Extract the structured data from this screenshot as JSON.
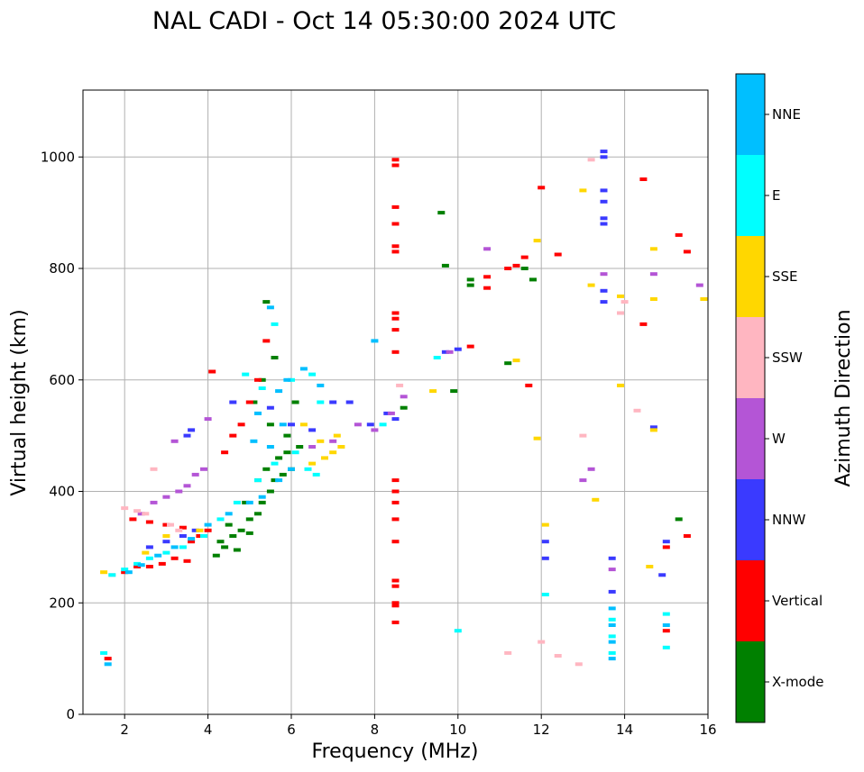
{
  "chart_data": {
    "type": "scatter",
    "title": "NAL CADI - Oct 14 05:30:00 2024 UTC",
    "xlabel": "Frequency (MHz)",
    "ylabel": "Virtual height (km)",
    "xlim": [
      1,
      16
    ],
    "ylim": [
      0,
      1120
    ],
    "xticks": [
      "2",
      "4",
      "6",
      "8",
      "10",
      "12",
      "14",
      "16"
    ],
    "yticks": [
      "0",
      "200",
      "400",
      "600",
      "800",
      "1000"
    ],
    "grid": true,
    "colorbar": {
      "label": "Azimuth Direction",
      "categories": [
        {
          "name": "X-mode",
          "color": "#008000"
        },
        {
          "name": "Vertical",
          "color": "#ff0000"
        },
        {
          "name": "NNW",
          "color": "#3a3aff"
        },
        {
          "name": "W",
          "color": "#b455d6"
        },
        {
          "name": "SSW",
          "color": "#ffb6c1"
        },
        {
          "name": "SSE",
          "color": "#ffd700"
        },
        {
          "name": "E",
          "color": "#00ffff"
        },
        {
          "name": "NNE",
          "color": "#00bfff"
        }
      ]
    },
    "series": [
      {
        "name": "X-mode",
        "points": [
          [
            4.2,
            285
          ],
          [
            4.4,
            300
          ],
          [
            4.6,
            320
          ],
          [
            4.8,
            330
          ],
          [
            5.0,
            350
          ],
          [
            5.2,
            360
          ],
          [
            5.3,
            380
          ],
          [
            5.5,
            400
          ],
          [
            5.6,
            420
          ],
          [
            5.8,
            430
          ],
          [
            6.0,
            440
          ],
          [
            5.2,
            420
          ],
          [
            4.9,
            380
          ],
          [
            4.5,
            340
          ],
          [
            5.7,
            460
          ],
          [
            5.4,
            440
          ],
          [
            6.2,
            480
          ],
          [
            5.9,
            500
          ],
          [
            5.5,
            520
          ],
          [
            6.1,
            560
          ],
          [
            5.1,
            560
          ],
          [
            5.3,
            600
          ],
          [
            5.6,
            640
          ],
          [
            5.4,
            740
          ],
          [
            9.6,
            900
          ],
          [
            9.7,
            805
          ],
          [
            10.3,
            780
          ],
          [
            10.3,
            770
          ],
          [
            11.2,
            630
          ],
          [
            11.6,
            800
          ],
          [
            11.8,
            780
          ],
          [
            15.3,
            350
          ],
          [
            4.3,
            310
          ],
          [
            4.7,
            295
          ],
          [
            5.0,
            325
          ],
          [
            5.9,
            470
          ],
          [
            8.7,
            550
          ],
          [
            9.9,
            580
          ]
        ]
      },
      {
        "name": "Vertical",
        "points": [
          [
            1.6,
            100
          ],
          [
            2.0,
            255
          ],
          [
            2.3,
            265
          ],
          [
            2.6,
            265
          ],
          [
            2.9,
            270
          ],
          [
            3.2,
            280
          ],
          [
            3.5,
            275
          ],
          [
            2.2,
            350
          ],
          [
            2.6,
            345
          ],
          [
            3.0,
            340
          ],
          [
            3.4,
            335
          ],
          [
            3.8,
            320
          ],
          [
            4.0,
            330
          ],
          [
            3.6,
            310
          ],
          [
            4.1,
            615
          ],
          [
            4.4,
            470
          ],
          [
            4.6,
            500
          ],
          [
            4.8,
            520
          ],
          [
            5.0,
            560
          ],
          [
            5.2,
            600
          ],
          [
            5.4,
            670
          ],
          [
            8.5,
            985
          ],
          [
            8.5,
            995
          ],
          [
            8.5,
            910
          ],
          [
            8.5,
            880
          ],
          [
            8.5,
            840
          ],
          [
            8.5,
            830
          ],
          [
            8.5,
            720
          ],
          [
            8.5,
            710
          ],
          [
            8.5,
            690
          ],
          [
            8.5,
            650
          ],
          [
            8.5,
            420
          ],
          [
            8.5,
            400
          ],
          [
            8.5,
            380
          ],
          [
            8.5,
            350
          ],
          [
            8.5,
            310
          ],
          [
            8.5,
            240
          ],
          [
            8.5,
            230
          ],
          [
            8.5,
            200
          ],
          [
            8.5,
            195
          ],
          [
            8.5,
            165
          ],
          [
            10.3,
            660
          ],
          [
            10.7,
            785
          ],
          [
            10.7,
            765
          ],
          [
            11.2,
            800
          ],
          [
            11.4,
            805
          ],
          [
            11.6,
            820
          ],
          [
            11.7,
            590
          ],
          [
            12.0,
            945
          ],
          [
            12.4,
            825
          ],
          [
            14.45,
            960
          ],
          [
            14.45,
            700
          ],
          [
            15.0,
            300
          ],
          [
            15.0,
            150
          ],
          [
            15.3,
            860
          ],
          [
            15.5,
            830
          ],
          [
            15.5,
            320
          ]
        ]
      },
      {
        "name": "NNW",
        "points": [
          [
            2.6,
            300
          ],
          [
            3.0,
            310
          ],
          [
            3.4,
            320
          ],
          [
            3.7,
            330
          ],
          [
            3.5,
            500
          ],
          [
            3.6,
            510
          ],
          [
            4.6,
            560
          ],
          [
            5.5,
            550
          ],
          [
            6.0,
            520
          ],
          [
            6.5,
            510
          ],
          [
            7.0,
            560
          ],
          [
            7.4,
            560
          ],
          [
            7.9,
            520
          ],
          [
            8.3,
            540
          ],
          [
            8.5,
            530
          ],
          [
            9.7,
            650
          ],
          [
            10.0,
            655
          ],
          [
            13.5,
            1010
          ],
          [
            13.5,
            1000
          ],
          [
            13.5,
            940
          ],
          [
            13.5,
            920
          ],
          [
            13.5,
            890
          ],
          [
            13.5,
            880
          ],
          [
            13.5,
            760
          ],
          [
            13.5,
            740
          ],
          [
            13.7,
            280
          ],
          [
            13.7,
            220
          ],
          [
            12.1,
            310
          ],
          [
            12.1,
            280
          ],
          [
            14.7,
            515
          ],
          [
            14.9,
            250
          ],
          [
            15.0,
            310
          ]
        ]
      },
      {
        "name": "W",
        "points": [
          [
            2.4,
            360
          ],
          [
            2.7,
            380
          ],
          [
            3.0,
            390
          ],
          [
            3.3,
            400
          ],
          [
            3.5,
            410
          ],
          [
            3.7,
            430
          ],
          [
            3.9,
            440
          ],
          [
            4.0,
            530
          ],
          [
            3.2,
            490
          ],
          [
            6.5,
            480
          ],
          [
            7.0,
            490
          ],
          [
            7.6,
            520
          ],
          [
            8.0,
            510
          ],
          [
            8.4,
            540
          ],
          [
            8.7,
            570
          ],
          [
            9.8,
            650
          ],
          [
            10.7,
            835
          ],
          [
            13.0,
            420
          ],
          [
            13.2,
            440
          ],
          [
            13.5,
            790
          ],
          [
            13.7,
            260
          ],
          [
            14.7,
            790
          ],
          [
            15.8,
            770
          ]
        ]
      },
      {
        "name": "SSW",
        "points": [
          [
            1.7,
            250
          ],
          [
            2.0,
            370
          ],
          [
            2.3,
            365
          ],
          [
            2.5,
            360
          ],
          [
            2.7,
            440
          ],
          [
            3.1,
            340
          ],
          [
            3.3,
            330
          ],
          [
            8.6,
            590
          ],
          [
            11.2,
            110
          ],
          [
            12.0,
            130
          ],
          [
            12.4,
            105
          ],
          [
            12.9,
            90
          ],
          [
            13.0,
            500
          ],
          [
            13.2,
            995
          ],
          [
            13.9,
            720
          ],
          [
            14.0,
            740
          ],
          [
            14.3,
            545
          ]
        ]
      },
      {
        "name": "SSE",
        "points": [
          [
            1.5,
            255
          ],
          [
            2.5,
            290
          ],
          [
            3.0,
            320
          ],
          [
            3.8,
            330
          ],
          [
            6.3,
            520
          ],
          [
            6.5,
            450
          ],
          [
            6.8,
            460
          ],
          [
            7.0,
            470
          ],
          [
            7.2,
            480
          ],
          [
            6.7,
            490
          ],
          [
            7.1,
            500
          ],
          [
            9.4,
            580
          ],
          [
            11.4,
            635
          ],
          [
            11.9,
            850
          ],
          [
            11.9,
            495
          ],
          [
            12.1,
            340
          ],
          [
            13.0,
            940
          ],
          [
            13.2,
            770
          ],
          [
            13.3,
            385
          ],
          [
            13.9,
            750
          ],
          [
            13.9,
            590
          ],
          [
            14.7,
            835
          ],
          [
            14.7,
            745
          ],
          [
            14.7,
            510
          ],
          [
            14.6,
            265
          ],
          [
            15.9,
            745
          ]
        ]
      },
      {
        "name": "E",
        "points": [
          [
            1.5,
            110
          ],
          [
            1.7,
            250
          ],
          [
            2.0,
            260
          ],
          [
            2.3,
            270
          ],
          [
            2.6,
            280
          ],
          [
            3.0,
            290
          ],
          [
            3.4,
            300
          ],
          [
            3.9,
            320
          ],
          [
            4.3,
            350
          ],
          [
            4.7,
            380
          ],
          [
            5.2,
            420
          ],
          [
            5.6,
            450
          ],
          [
            6.1,
            470
          ],
          [
            6.4,
            440
          ],
          [
            6.6,
            430
          ],
          [
            5.3,
            585
          ],
          [
            5.6,
            700
          ],
          [
            6.5,
            610
          ],
          [
            6.7,
            560
          ],
          [
            4.9,
            610
          ],
          [
            6.0,
            600
          ],
          [
            8.2,
            520
          ],
          [
            9.5,
            640
          ],
          [
            10.0,
            150
          ],
          [
            12.1,
            215
          ],
          [
            13.7,
            110
          ],
          [
            13.7,
            140
          ],
          [
            13.7,
            170
          ],
          [
            15.0,
            120
          ],
          [
            15.0,
            180
          ]
        ]
      },
      {
        "name": "NNE",
        "points": [
          [
            1.6,
            90
          ],
          [
            2.1,
            255
          ],
          [
            2.4,
            268
          ],
          [
            2.8,
            285
          ],
          [
            3.2,
            300
          ],
          [
            3.6,
            315
          ],
          [
            4.0,
            340
          ],
          [
            4.5,
            360
          ],
          [
            5.0,
            380
          ],
          [
            5.3,
            390
          ],
          [
            5.7,
            420
          ],
          [
            6.0,
            440
          ],
          [
            5.5,
            480
          ],
          [
            5.8,
            520
          ],
          [
            5.2,
            540
          ],
          [
            5.7,
            580
          ],
          [
            5.9,
            600
          ],
          [
            6.3,
            620
          ],
          [
            6.7,
            590
          ],
          [
            5.5,
            730
          ],
          [
            5.1,
            490
          ],
          [
            8.0,
            670
          ],
          [
            13.7,
            100
          ],
          [
            13.7,
            130
          ],
          [
            13.7,
            160
          ],
          [
            13.7,
            190
          ],
          [
            15.0,
            160
          ]
        ]
      }
    ]
  }
}
